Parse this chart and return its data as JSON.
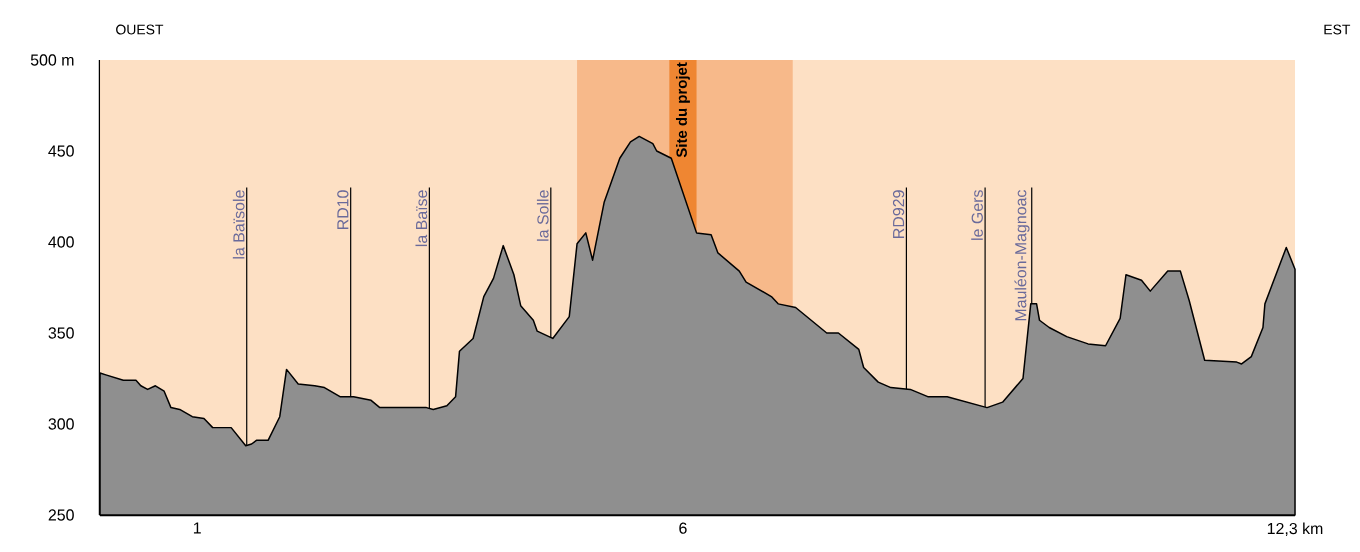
{
  "chart_data": {
    "type": "area",
    "x": [
      0.0,
      0.06,
      0.24,
      0.37,
      0.42,
      0.49,
      0.57,
      0.66,
      0.73,
      0.82,
      0.95,
      1.07,
      1.16,
      1.35,
      1.5,
      1.56,
      1.61,
      1.73,
      1.85,
      1.92,
      2.04,
      2.21,
      2.31,
      2.47,
      2.61,
      2.79,
      2.88,
      3.36,
      3.43,
      3.57,
      3.66,
      3.7,
      3.84,
      3.95,
      4.05,
      4.15,
      4.26,
      4.33,
      4.46,
      4.5,
      4.66,
      4.83,
      4.91,
      5.0,
      5.07,
      5.19,
      5.35,
      5.46,
      5.55,
      5.69,
      5.73,
      5.88,
      6.14,
      6.29,
      6.36,
      6.58,
      6.65,
      6.91,
      6.98,
      7.16,
      7.48,
      7.6,
      7.81,
      7.86,
      8.01,
      8.14,
      8.34,
      8.52,
      8.72,
      9.13,
      9.29,
      9.5,
      9.58,
      9.64,
      9.67,
      9.77,
      9.95,
      10.17,
      10.35,
      10.5,
      10.56,
      10.72,
      10.81,
      10.99,
      11.12,
      11.21,
      11.37,
      11.7,
      11.75,
      11.85,
      11.97,
      11.99,
      12.21,
      12.3
    ],
    "series": [
      {
        "color": "#8f8f8f",
        "values": [
          328,
          327,
          324,
          324,
          321,
          319,
          321,
          318,
          309,
          308,
          304,
          303,
          298,
          298,
          288,
          289,
          291,
          291,
          304,
          330,
          322,
          321,
          320,
          315,
          315,
          313,
          309,
          309,
          308,
          310,
          315,
          340,
          347,
          370,
          380,
          398,
          382,
          365,
          357,
          351,
          347,
          359,
          399,
          405,
          390,
          422,
          446,
          455,
          458,
          454,
          450,
          446,
          405,
          404,
          394,
          384,
          378,
          370,
          366,
          364,
          350,
          350,
          341,
          331,
          323,
          320,
          319,
          315,
          315,
          309,
          312,
          325,
          366,
          366,
          357,
          353,
          348,
          344,
          343,
          358,
          382,
          379,
          373,
          384,
          384,
          368,
          335,
          334,
          333,
          337,
          353,
          366,
          397,
          385
        ]
      }
    ],
    "xlim": [
      0,
      12.3
    ],
    "ylim": [
      250,
      500
    ],
    "xticks": [
      {
        "value": 1,
        "label": "1"
      },
      {
        "value": 6,
        "label": "6"
      },
      {
        "value": 12.3,
        "label": "12,3 km"
      }
    ],
    "yticks": [
      250,
      300,
      350,
      400,
      450,
      {
        "value": 500,
        "label": "500 m"
      }
    ],
    "bands": [
      {
        "axis": "x",
        "from": 4.91,
        "to": 7.13,
        "color": "#f7b98a"
      },
      {
        "axis": "x",
        "from": 5.86,
        "to": 6.14,
        "color": "#ef8632",
        "label": "Site du projet"
      }
    ],
    "ref_lines": [
      {
        "axis": "x",
        "value": 1.51,
        "label": "la Baïsole"
      },
      {
        "axis": "x",
        "value": 2.58,
        "label": "RD10"
      },
      {
        "axis": "x",
        "value": 3.39,
        "label": "la Baïse"
      },
      {
        "axis": "x",
        "value": 4.64,
        "label": "la Solle"
      },
      {
        "axis": "x",
        "value": 8.3,
        "label": "RD929"
      },
      {
        "axis": "x",
        "value": 9.11,
        "label": "le Gers"
      },
      {
        "axis": "x",
        "value": 9.59,
        "label": "Mauléon-Magnoac"
      }
    ],
    "annotations": [
      "OUEST",
      "EST"
    ]
  }
}
